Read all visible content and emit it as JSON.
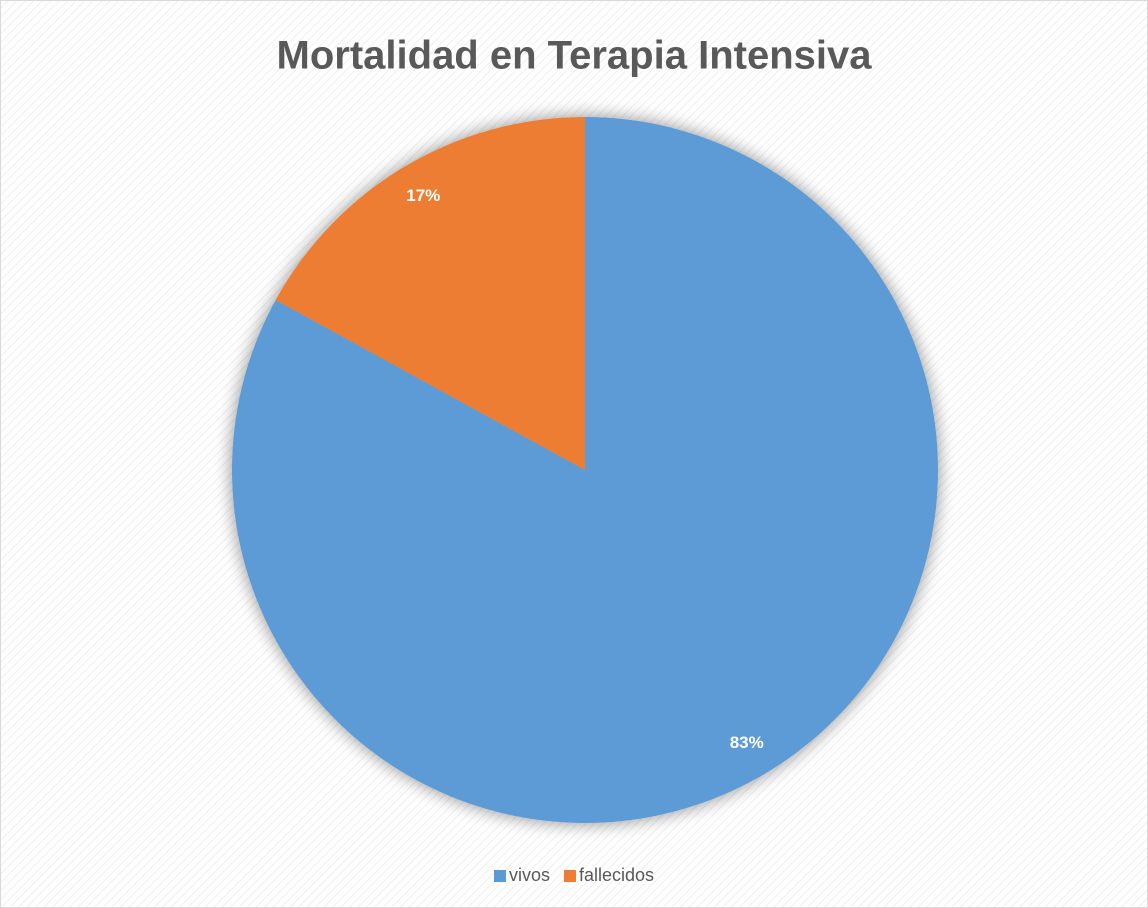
{
  "chart_data": {
    "type": "pie",
    "title": "Mortalidad en Terapia Intensiva",
    "categories": [
      "vivos",
      "fallecidos"
    ],
    "values": [
      83,
      17
    ],
    "value_labels": [
      "83%",
      "17%"
    ],
    "colors": [
      "#5b9bd5",
      "#ed7d31"
    ],
    "legend": "bottom"
  }
}
